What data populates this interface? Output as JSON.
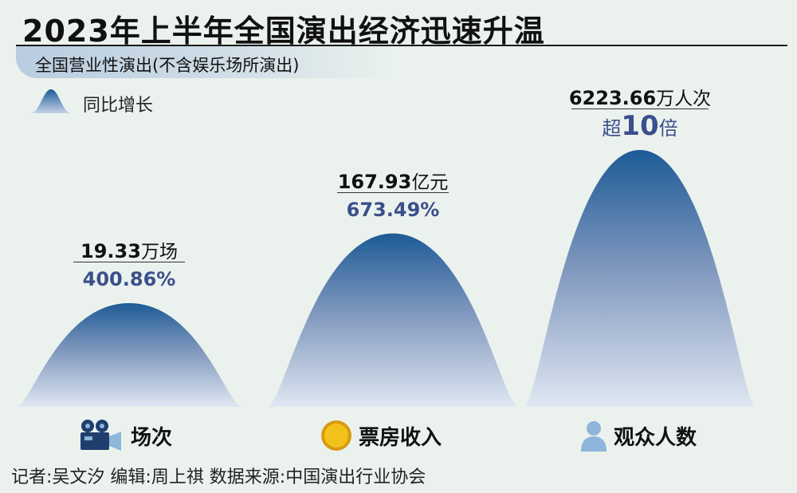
{
  "header": {
    "title": "2023年上半年全国演出经济迅速升温",
    "subtitle": "全国营业性演出(不含娱乐场所演出)"
  },
  "legend": {
    "label": "同比增长"
  },
  "chart_data": {
    "type": "area",
    "title": "2023年上半年全国演出经济迅速升温",
    "subtitle": "全国营业性演出(不含娱乐场所演出)",
    "legend": [
      "同比增长"
    ],
    "categories": [
      "场次",
      "票房收入",
      "观众人数"
    ],
    "values": [
      {
        "amount": "19.33",
        "unit": "万场",
        "growth": "400.86%",
        "growth_pct": 400.86
      },
      {
        "amount": "167.93",
        "unit": "亿元",
        "growth": "673.49%",
        "growth_pct": 673.49
      },
      {
        "amount": "6223.66",
        "unit": "万人次",
        "growth_prefix": "超",
        "growth_number": "10",
        "growth_suffix": "倍",
        "growth_pct": 1000
      }
    ],
    "grid": false
  },
  "labels": {
    "c0_amount": "19.33",
    "c0_unit": "万场",
    "c0_growth": "400.86%",
    "c1_amount": "167.93",
    "c1_unit": "亿元",
    "c1_growth": "673.49%",
    "c2_amount": "6223.66",
    "c2_unit": "万人次",
    "c2_growth_prefix": "超",
    "c2_growth_number": "10",
    "c2_growth_suffix": "倍",
    "cat0": "场次",
    "cat1": "票房收入",
    "cat2": "观众人数"
  },
  "icons": [
    "film-camera-icon",
    "coin-icon",
    "person-icon"
  ],
  "colors": {
    "peak_top": "#1d5b96",
    "peak_mid": "#8fa5c7",
    "peak_base": "#c6d3e8",
    "growth_text": "#3b4f8c",
    "coin": "#f2c21a",
    "person": "#8db6da"
  },
  "footer": {
    "credit": "记者:吴文汐  编辑:周上祺  数据来源:中国演出行业协会"
  }
}
